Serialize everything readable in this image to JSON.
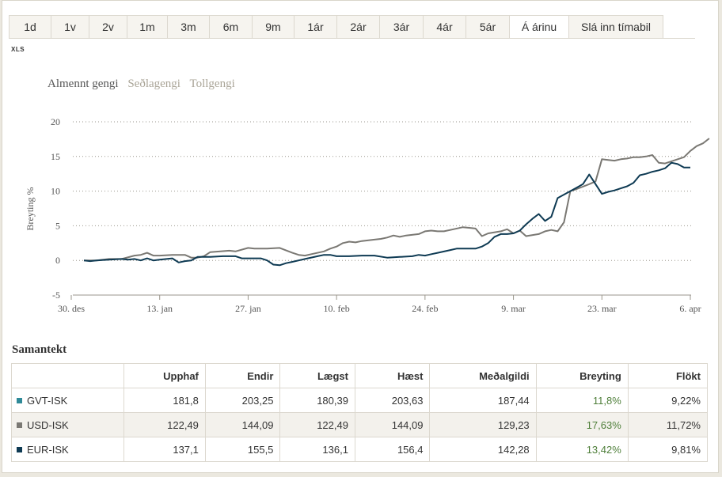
{
  "tabs": [
    {
      "label": "1d"
    },
    {
      "label": "1v"
    },
    {
      "label": "2v"
    },
    {
      "label": "1m"
    },
    {
      "label": "3m"
    },
    {
      "label": "6m"
    },
    {
      "label": "9m"
    },
    {
      "label": "1ár"
    },
    {
      "label": "2ár"
    },
    {
      "label": "3ár"
    },
    {
      "label": "4ár"
    },
    {
      "label": "5ár"
    },
    {
      "label": "Á árinu",
      "active": true
    },
    {
      "label": "Slá inn tímabil"
    }
  ],
  "xls_label": "XLS",
  "series_tabs": {
    "active": "Almennt gengi",
    "inactive1": "Seðlagengi",
    "inactive2": "Tollgengi"
  },
  "chart_data": {
    "type": "line",
    "ylabel": "Breyting %",
    "xlabel": "",
    "ylim": [
      -5,
      20
    ],
    "yticks": [
      -5,
      0,
      5,
      10,
      15,
      20
    ],
    "xticks": [
      "30. des",
      "13. jan",
      "27. jan",
      "10. feb",
      "24. feb",
      "9. mar",
      "23. mar",
      "6. apr"
    ],
    "x_unit": "days from 30. des",
    "grid": true,
    "series": [
      {
        "color": "#7a7873",
        "points": [
          [
            2,
            0
          ],
          [
            4,
            0
          ],
          [
            6,
            0.2
          ],
          [
            8,
            0.2
          ],
          [
            10,
            0.7
          ],
          [
            11,
            0.8
          ],
          [
            12,
            1.1
          ],
          [
            13,
            0.7
          ],
          [
            14,
            0.7
          ],
          [
            16,
            0.8
          ],
          [
            18,
            0.8
          ],
          [
            19,
            0.4
          ],
          [
            20,
            0.4
          ],
          [
            21,
            0.6
          ],
          [
            22,
            1.2
          ],
          [
            25,
            1.4
          ],
          [
            26,
            1.3
          ],
          [
            28,
            1.8
          ],
          [
            29,
            1.7
          ],
          [
            31,
            1.7
          ],
          [
            33,
            1.8
          ],
          [
            35,
            1.1
          ],
          [
            36,
            0.8
          ],
          [
            37,
            0.7
          ],
          [
            38,
            0.9
          ],
          [
            40,
            1.3
          ],
          [
            41,
            1.7
          ],
          [
            42,
            2.0
          ],
          [
            43,
            2.5
          ],
          [
            44,
            2.7
          ],
          [
            45,
            2.6
          ],
          [
            46,
            2.8
          ],
          [
            48,
            3.0
          ],
          [
            49,
            3.1
          ],
          [
            50,
            3.3
          ],
          [
            51,
            3.6
          ],
          [
            52,
            3.4
          ],
          [
            53,
            3.6
          ],
          [
            55,
            3.8
          ],
          [
            56,
            4.2
          ],
          [
            57,
            4.3
          ],
          [
            58,
            4.2
          ],
          [
            59,
            4.2
          ],
          [
            60,
            4.4
          ],
          [
            62,
            4.8
          ],
          [
            63,
            4.7
          ],
          [
            64,
            4.6
          ],
          [
            65,
            3.5
          ],
          [
            66,
            3.9
          ],
          [
            68,
            4.2
          ],
          [
            69,
            4.5
          ],
          [
            70,
            3.9
          ],
          [
            71,
            4.3
          ],
          [
            72,
            3.5
          ],
          [
            74,
            3.8
          ],
          [
            75,
            4.2
          ],
          [
            76,
            4.4
          ],
          [
            77,
            4.2
          ],
          [
            78,
            5.5
          ],
          [
            79,
            10.0
          ],
          [
            80,
            10.3
          ],
          [
            82,
            11.0
          ],
          [
            83,
            11.4
          ],
          [
            84,
            14.6
          ],
          [
            85,
            14.5
          ],
          [
            86,
            14.4
          ],
          [
            87,
            14.6
          ],
          [
            88,
            14.7
          ],
          [
            89,
            14.9
          ],
          [
            90,
            14.9
          ],
          [
            91,
            15.0
          ],
          [
            92,
            15.2
          ],
          [
            93,
            14.1
          ],
          [
            94,
            14.0
          ],
          [
            95,
            14.3
          ],
          [
            96,
            14.6
          ],
          [
            97,
            14.9
          ],
          [
            98,
            15.8
          ],
          [
            99,
            16.5
          ],
          [
            100,
            16.9
          ],
          [
            101,
            17.6
          ]
        ]
      },
      {
        "color": "#0e3a53",
        "points": [
          [
            2,
            0
          ],
          [
            3,
            -0.1
          ],
          [
            4,
            0
          ],
          [
            6,
            0.1
          ],
          [
            8,
            0.2
          ],
          [
            9,
            0.1
          ],
          [
            10,
            0.2
          ],
          [
            11,
            0
          ],
          [
            12,
            0.3
          ],
          [
            13,
            0
          ],
          [
            14,
            0.1
          ],
          [
            16,
            0.3
          ],
          [
            17,
            -0.3
          ],
          [
            18,
            -0.1
          ],
          [
            19,
            0
          ],
          [
            20,
            0.5
          ],
          [
            22,
            0.5
          ],
          [
            24,
            0.6
          ],
          [
            26,
            0.6
          ],
          [
            27,
            0.3
          ],
          [
            30,
            0.3
          ],
          [
            31,
            0
          ],
          [
            32,
            -0.6
          ],
          [
            33,
            -0.7
          ],
          [
            34,
            -0.4
          ],
          [
            35,
            -0.2
          ],
          [
            37,
            0.2
          ],
          [
            39,
            0.6
          ],
          [
            40,
            0.8
          ],
          [
            41,
            0.8
          ],
          [
            42,
            0.6
          ],
          [
            44,
            0.6
          ],
          [
            46,
            0.7
          ],
          [
            48,
            0.7
          ],
          [
            50,
            0.4
          ],
          [
            52,
            0.5
          ],
          [
            54,
            0.6
          ],
          [
            55,
            0.8
          ],
          [
            56,
            0.7
          ],
          [
            57,
            0.9
          ],
          [
            58,
            1.1
          ],
          [
            60,
            1.5
          ],
          [
            61,
            1.7
          ],
          [
            64,
            1.7
          ],
          [
            65,
            2.0
          ],
          [
            66,
            2.5
          ],
          [
            67,
            3.4
          ],
          [
            68,
            3.8
          ],
          [
            69,
            3.8
          ],
          [
            70,
            3.9
          ],
          [
            71,
            4.3
          ],
          [
            72,
            5.2
          ],
          [
            73,
            6.0
          ],
          [
            74,
            6.7
          ],
          [
            75,
            5.7
          ],
          [
            76,
            6.3
          ],
          [
            77,
            9.0
          ],
          [
            78,
            9.5
          ],
          [
            79,
            10.0
          ],
          [
            80,
            10.5
          ],
          [
            81,
            11.0
          ],
          [
            82,
            12.4
          ],
          [
            83,
            11.0
          ],
          [
            84,
            9.6
          ],
          [
            85,
            9.9
          ],
          [
            86,
            10.1
          ],
          [
            87,
            10.4
          ],
          [
            88,
            10.7
          ],
          [
            89,
            11.2
          ],
          [
            90,
            12.3
          ],
          [
            91,
            12.5
          ],
          [
            92,
            12.8
          ],
          [
            93,
            13.0
          ],
          [
            94,
            13.3
          ],
          [
            95,
            14.1
          ],
          [
            96,
            13.9
          ],
          [
            97,
            13.4
          ],
          [
            98,
            13.4
          ]
        ]
      }
    ]
  },
  "summary": {
    "title": "Samantekt",
    "headers": [
      "Upphaf",
      "Endir",
      "Lægst",
      "Hæst",
      "Meðalgildi",
      "Breyting",
      "Flökt"
    ],
    "rows": [
      {
        "name": "GVT-ISK",
        "color": "#2f8a98",
        "values": [
          "181,8",
          "203,25",
          "180,39",
          "203,63",
          "187,44",
          "11,8%",
          "9,22%"
        ]
      },
      {
        "name": "USD-ISK",
        "color": "#7a7873",
        "values": [
          "122,49",
          "144,09",
          "122,49",
          "144,09",
          "129,23",
          "17,63%",
          "11,72%"
        ]
      },
      {
        "name": "EUR-ISK",
        "color": "#0e3a53",
        "values": [
          "137,1",
          "155,5",
          "136,1",
          "156,4",
          "142,28",
          "13,42%",
          "9,81%"
        ]
      }
    ]
  }
}
